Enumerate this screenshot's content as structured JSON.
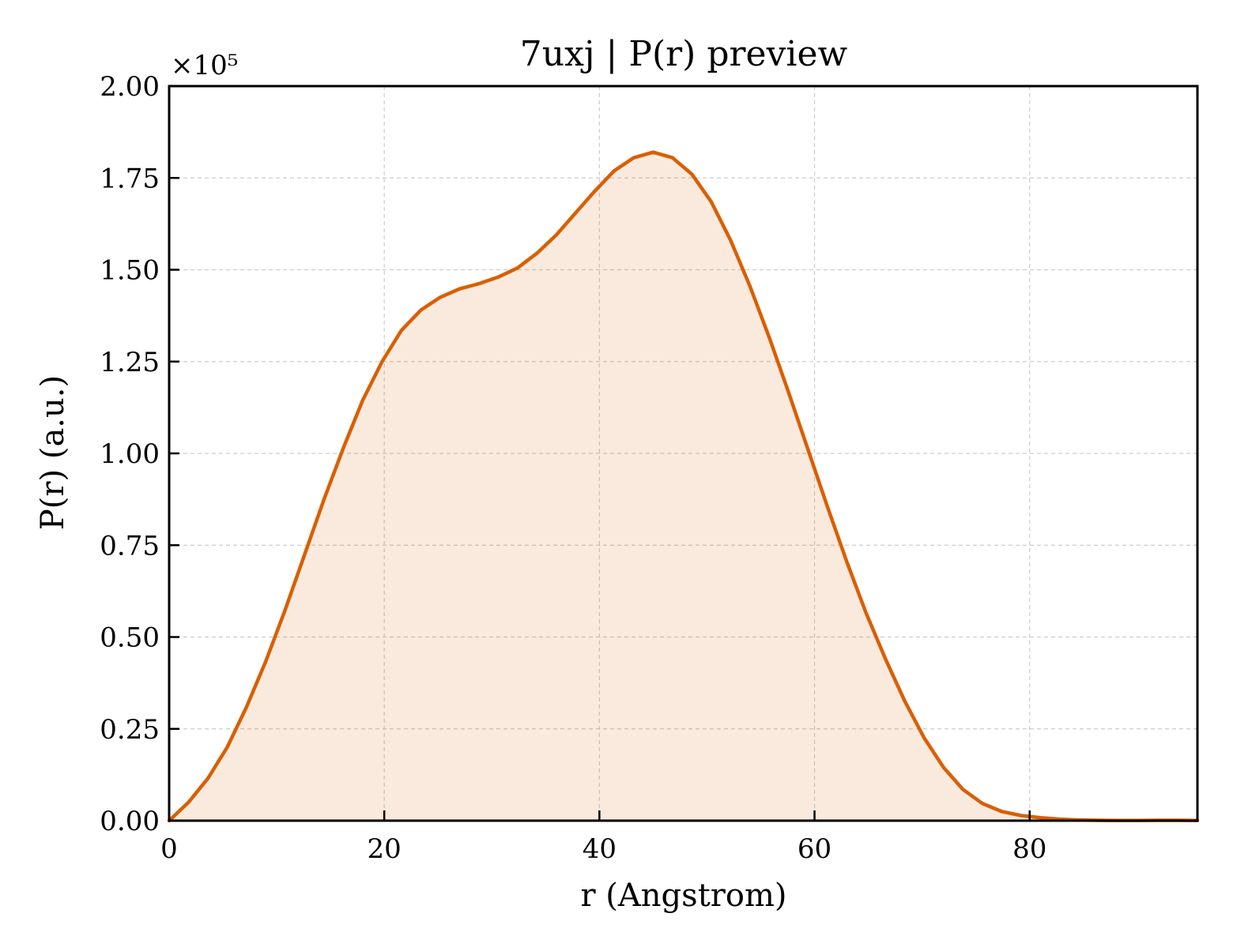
{
  "chart_data": {
    "type": "area",
    "title": "7uxj | P(r) preview",
    "xlabel": "r (Angstrom)",
    "ylabel": "P(r) (a.u.)",
    "y_multiplier_label": "×10⁵",
    "y_multiplier": 100000,
    "xlim": [
      0,
      95.6
    ],
    "ylim": [
      0,
      2.0
    ],
    "x_ticks": [
      0,
      20,
      40,
      60,
      80
    ],
    "x_tick_labels": [
      "0",
      "20",
      "40",
      "60",
      "80"
    ],
    "y_ticks": [
      0,
      0.25,
      0.5,
      0.75,
      1.0,
      1.25,
      1.5,
      1.75,
      2.0
    ],
    "y_tick_labels": [
      "0.00",
      "0.25",
      "0.50",
      "0.75",
      "1.00",
      "1.25",
      "1.50",
      "1.75",
      "2.00"
    ],
    "grid": true,
    "legend": "none",
    "series": [
      {
        "color": "#d95f02",
        "fill_color": "#d95f02",
        "fill_opacity": 0.13,
        "x": [
          0,
          1.8,
          3.6,
          5.4,
          7.2,
          9.0,
          10.8,
          12.6,
          14.4,
          16.2,
          18.0,
          19.8,
          21.6,
          23.4,
          25.2,
          27.0,
          28.8,
          30.6,
          32.4,
          34.2,
          36.0,
          37.8,
          39.6,
          41.4,
          43.2,
          45.0,
          46.8,
          48.6,
          50.4,
          52.2,
          54.0,
          55.8,
          57.6,
          59.4,
          61.2,
          63.0,
          64.8,
          66.6,
          68.4,
          70.2,
          72.0,
          73.8,
          75.6,
          77.4,
          79.2,
          81.0,
          82.8,
          84.6,
          86.4,
          88.2,
          90.0,
          91.8,
          93.6,
          95.6
        ],
        "y": [
          0.0,
          0.05,
          0.115,
          0.2,
          0.31,
          0.435,
          0.575,
          0.725,
          0.875,
          1.015,
          1.145,
          1.25,
          1.335,
          1.39,
          1.425,
          1.448,
          1.462,
          1.48,
          1.505,
          1.545,
          1.595,
          1.655,
          1.715,
          1.77,
          1.805,
          1.82,
          1.805,
          1.76,
          1.685,
          1.58,
          1.455,
          1.315,
          1.165,
          1.01,
          0.855,
          0.705,
          0.565,
          0.44,
          0.325,
          0.225,
          0.145,
          0.085,
          0.047,
          0.025,
          0.014,
          0.008,
          0.004,
          0.002,
          0.001,
          0.0005,
          0.0005,
          0.001,
          0.001,
          0.0005
        ]
      }
    ]
  }
}
